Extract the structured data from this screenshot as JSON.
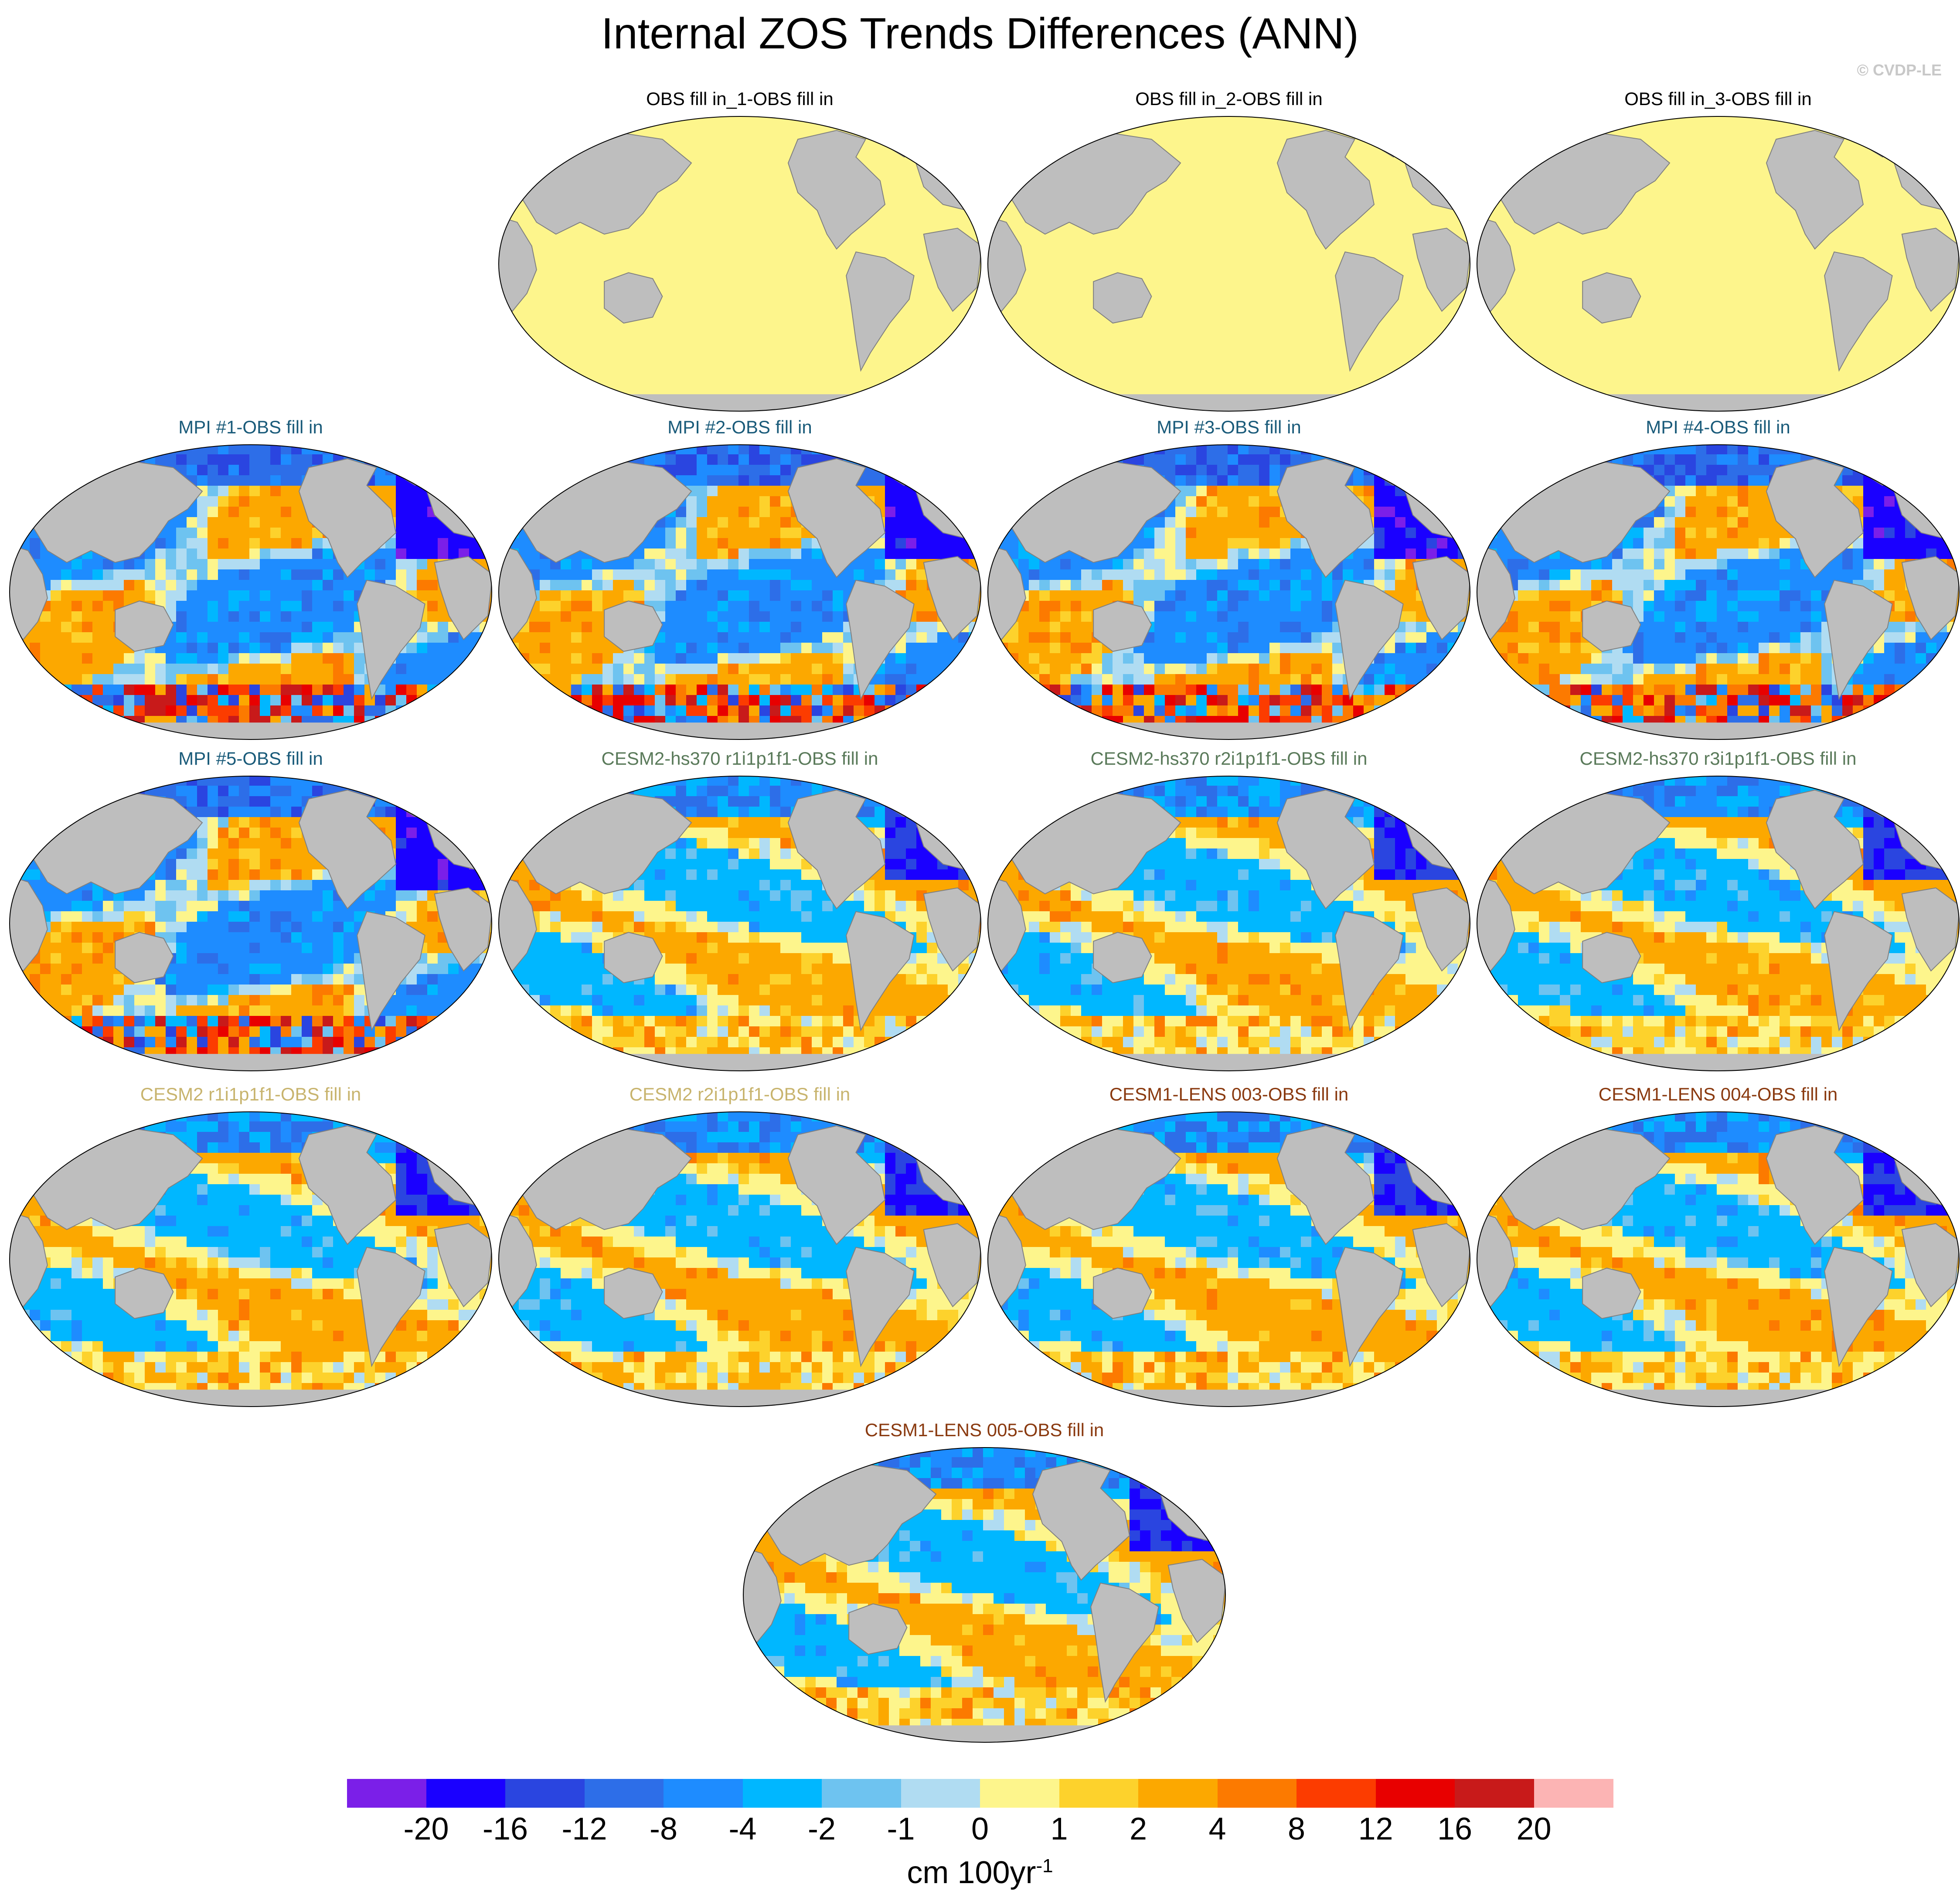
{
  "title": "Internal ZOS Trends Differences (ANN)",
  "watermark": "© CVDP-LE",
  "panels": [
    {
      "title": "OBS fill in_1-OBS fill in",
      "title_color": "#000000",
      "pattern": "uniform"
    },
    {
      "title": "OBS fill in_2-OBS fill in",
      "title_color": "#000000",
      "pattern": "uniform"
    },
    {
      "title": "OBS fill in_3-OBS fill in",
      "title_color": "#000000",
      "pattern": "uniform"
    },
    {
      "title": "MPI #1-OBS fill in",
      "title_color": "#1a5b7a",
      "pattern": "mpi"
    },
    {
      "title": "MPI #2-OBS fill in",
      "title_color": "#1a5b7a",
      "pattern": "mpi"
    },
    {
      "title": "MPI #3-OBS fill in",
      "title_color": "#1a5b7a",
      "pattern": "mpi"
    },
    {
      "title": "MPI #4-OBS fill in",
      "title_color": "#1a5b7a",
      "pattern": "mpi"
    },
    {
      "title": "MPI #5-OBS fill in",
      "title_color": "#1a5b7a",
      "pattern": "mpi"
    },
    {
      "title": "CESM2-hs370 r1i1p1f1-OBS fill in",
      "title_color": "#5a7a5a",
      "pattern": "cesm"
    },
    {
      "title": "CESM2-hs370 r2i1p1f1-OBS fill in",
      "title_color": "#5a7a5a",
      "pattern": "cesm"
    },
    {
      "title": "CESM2-hs370 r3i1p1f1-OBS fill in",
      "title_color": "#5a7a5a",
      "pattern": "cesm"
    },
    {
      "title": "CESM2 r1i1p1f1-OBS fill in",
      "title_color": "#c8b46e",
      "pattern": "cesm"
    },
    {
      "title": "CESM2 r2i1p1f1-OBS fill in",
      "title_color": "#c8b46e",
      "pattern": "cesm"
    },
    {
      "title": "CESM1-LENS 003-OBS fill in",
      "title_color": "#8a3a10",
      "pattern": "cesm"
    },
    {
      "title": "CESM1-LENS 004-OBS fill in",
      "title_color": "#8a3a10",
      "pattern": "cesm"
    },
    {
      "title": "CESM1-LENS 005-OBS fill in",
      "title_color": "#8a3a10",
      "pattern": "cesm"
    }
  ],
  "colorbar": {
    "labels": [
      "-20",
      "-16",
      "-12",
      "-8",
      "-4",
      "-2",
      "-1",
      "0",
      "1",
      "2",
      "4",
      "8",
      "12",
      "16",
      "20"
    ],
    "colors": [
      "#7b1fe8",
      "#1a00ff",
      "#2a45e0",
      "#2d6ee8",
      "#1e8cff",
      "#00b7ff",
      "#6ec3f0",
      "#b0dcf2",
      "#fdf58c",
      "#fdd22c",
      "#fca800",
      "#fc7a00",
      "#fc3c00",
      "#e80000",
      "#c81a1a",
      "#fcb4b4"
    ],
    "units": "cm 100yr",
    "units_exponent": "-1"
  },
  "colors": {
    "land": "#bebebe",
    "background": "#ffffff"
  }
}
